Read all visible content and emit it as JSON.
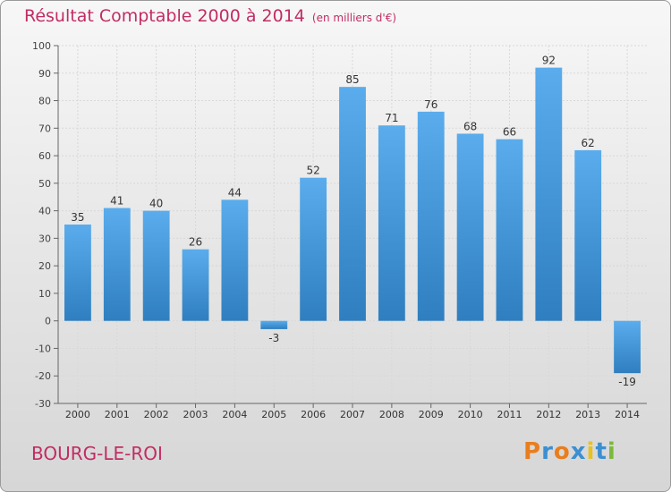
{
  "title": "Résultat Comptable 2000 à 2014",
  "unit_note": "(en milliers d'€)",
  "place": "BOURG-LE-ROI",
  "logo": {
    "text": "Proxiti",
    "letters": [
      "P",
      "r",
      "o",
      "x",
      "i",
      "t",
      "i"
    ],
    "colors": [
      "#e87e1e",
      "#3c8fd1",
      "#e87e1e",
      "#3c8fd1",
      "#e8c21e",
      "#3c8fd1",
      "#7cb93a"
    ]
  },
  "colors": {
    "accent": "#c22c63",
    "bar_top": "#5aacec",
    "bar_bottom": "#2f7fc0"
  },
  "chart_data": {
    "type": "bar",
    "title": "Résultat Comptable 2000 à 2014",
    "ylabel": "en milliers d'€",
    "xlabel": "",
    "categories": [
      "2000",
      "2001",
      "2002",
      "2003",
      "2004",
      "2005",
      "2006",
      "2007",
      "2008",
      "2009",
      "2010",
      "2011",
      "2012",
      "2013",
      "2014"
    ],
    "values": [
      35,
      41,
      40,
      26,
      44,
      -3,
      52,
      85,
      71,
      76,
      68,
      66,
      92,
      62,
      -19
    ],
    "ylim": [
      -30,
      100
    ],
    "yticks": [
      100,
      90,
      80,
      70,
      60,
      50,
      40,
      30,
      20,
      10,
      0,
      -10,
      -20,
      -30
    ],
    "grid": true,
    "legend": "none"
  }
}
